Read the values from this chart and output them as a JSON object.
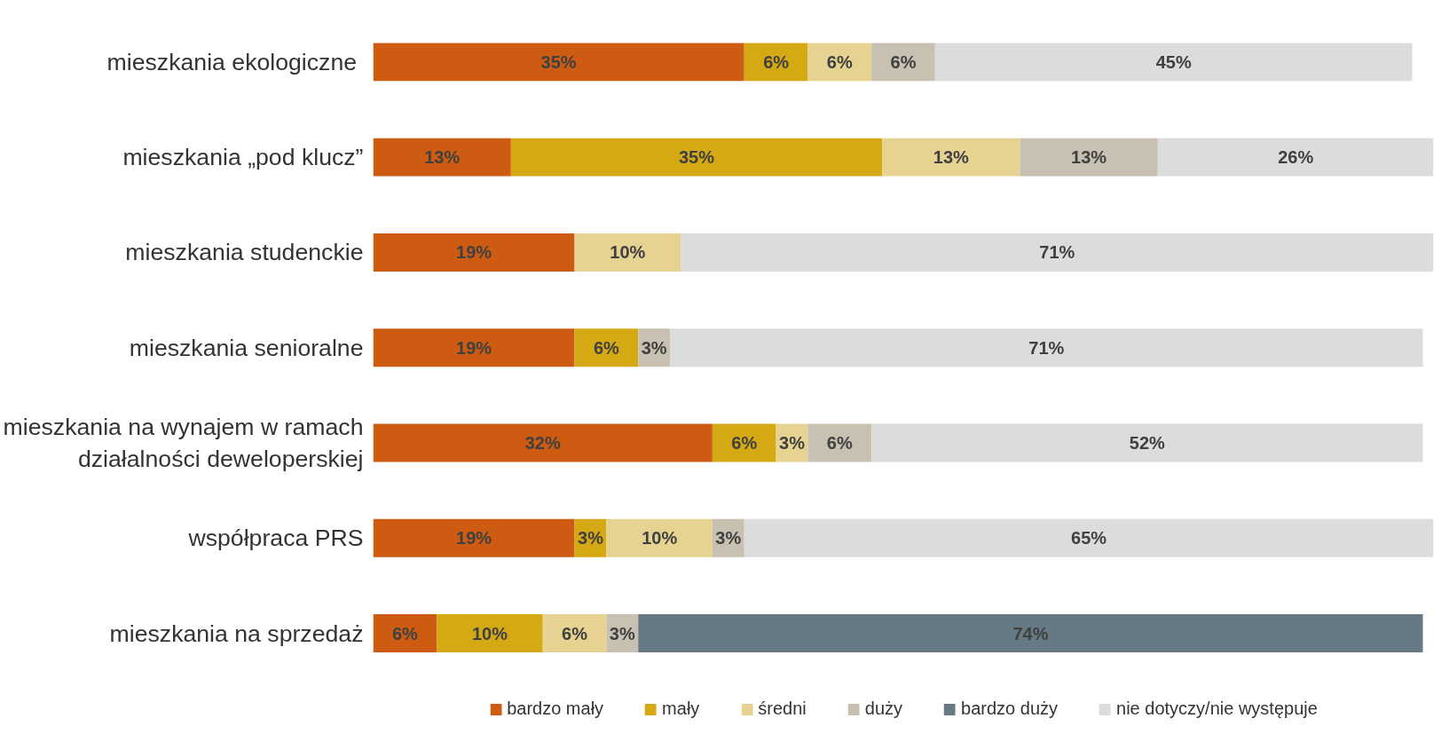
{
  "chart_data": {
    "type": "bar",
    "orientation": "horizontal",
    "stacked": true,
    "legend": "bottom",
    "tick_labels": "y",
    "grid": false,
    "categories": [
      "mieszkania  ekologiczne",
      "mieszkania „pod klucz”",
      "mieszkania studenckie",
      "mieszkania senioralne",
      "mieszkania na wynajem w ramach\ndziałalności deweloperskiej",
      "współpraca PRS",
      "mieszkania na sprzedaż"
    ],
    "series": [
      {
        "name": "bardzo mały",
        "color": "#cd5c12",
        "values": [
          35,
          13,
          19,
          19,
          32,
          19,
          6
        ],
        "value_labels": [
          "35%",
          "13%",
          "19%",
          "19%",
          "32%",
          "19%",
          "6%"
        ]
      },
      {
        "name": "mały",
        "color": "#d4a914",
        "values": [
          6,
          35,
          null,
          6,
          6,
          3,
          10
        ],
        "value_labels": [
          "6%",
          "35%",
          null,
          "6%",
          "6%",
          "3%",
          "10%"
        ]
      },
      {
        "name": "średni",
        "color": "#e6d391",
        "values": [
          6,
          13,
          10,
          null,
          3,
          10,
          6
        ],
        "value_labels": [
          "6%",
          "13%",
          "10%",
          null,
          "3%",
          "10%",
          "6%"
        ]
      },
      {
        "name": "duży",
        "color": "#c8c0b0",
        "values": [
          6,
          13,
          null,
          3,
          6,
          3,
          3
        ],
        "value_labels": [
          "6%",
          "13%",
          null,
          "3%",
          "6%",
          "3%",
          "3%"
        ]
      },
      {
        "name": "bardzo duży",
        "color": "#677985",
        "values": [
          null,
          null,
          null,
          null,
          null,
          null,
          74
        ],
        "value_labels": [
          null,
          null,
          null,
          null,
          null,
          null,
          "74%"
        ]
      },
      {
        "name": "nie dotyczy/nie występuje",
        "color": "#dcdcdc",
        "values": [
          45,
          26,
          71,
          71,
          52,
          65,
          null
        ],
        "value_labels": [
          "45%",
          "26%",
          "71%",
          "71%",
          "52%",
          "65%",
          null
        ]
      }
    ]
  }
}
